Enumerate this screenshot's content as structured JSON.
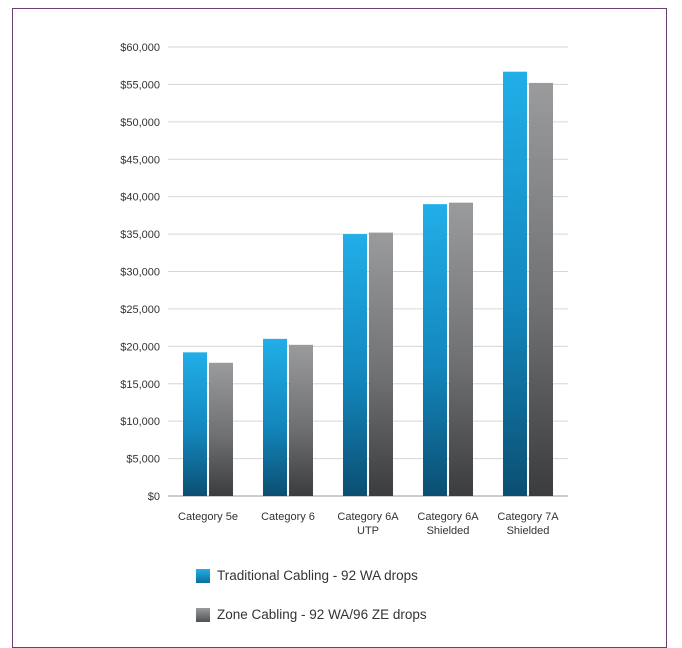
{
  "chart_data": {
    "type": "bar",
    "title": "",
    "xlabel": "",
    "ylabel": "",
    "ylim": [
      0,
      60000
    ],
    "y_tick_values": [
      0,
      5000,
      10000,
      15000,
      20000,
      25000,
      30000,
      35000,
      40000,
      45000,
      50000,
      55000,
      60000
    ],
    "y_tick_labels": [
      "$0",
      "$5,000",
      "$10,000",
      "$15,000",
      "$20,000",
      "$25,000",
      "$30,000",
      "$35,000",
      "$40,000",
      "$45,000",
      "$50,000",
      "$55,000",
      "$60,000"
    ],
    "grid": true,
    "legend_position": "bottom",
    "categories": [
      [
        "Category 5e"
      ],
      [
        "Category 6"
      ],
      [
        "Category 6A",
        "UTP"
      ],
      [
        "Category 6A",
        "Shielded"
      ],
      [
        "Category 7A",
        "Shielded"
      ]
    ],
    "series": [
      {
        "name": "Traditional Cabling - 92 WA drops",
        "color": "#1aa3dd",
        "values": [
          19200,
          21000,
          35000,
          39000,
          56700
        ]
      },
      {
        "name": "Zone Cabling - 92 WA/96 ZE drops",
        "color": "#8a8b8d",
        "values": [
          17800,
          20200,
          35200,
          39200,
          55200
        ]
      }
    ]
  },
  "legend": {
    "traditional_label": "Traditional Cabling - 92 WA drops",
    "zone_label": "Zone Cabling - 92 WA/96 ZE drops"
  }
}
